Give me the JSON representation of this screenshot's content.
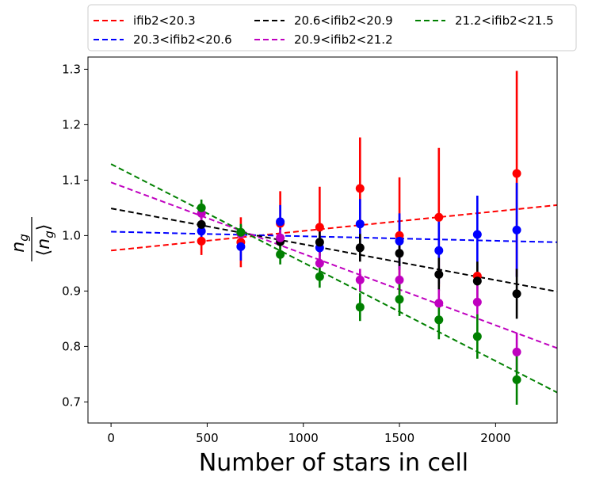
{
  "chart_data": {
    "type": "scatter",
    "xlabel": "Number of stars in cell",
    "ylabel": {
      "symbol": "n",
      "subscript": "g"
    },
    "xlim": [
      -120,
      2320
    ],
    "ylim": [
      0.662,
      1.322
    ],
    "xticks": [
      0,
      500,
      1000,
      1500,
      2000
    ],
    "yticks": [
      0.7,
      0.8,
      0.9,
      1.0,
      1.1,
      1.2,
      1.3
    ],
    "legend_position": "top, outside plot area",
    "series": [
      {
        "name": "ifib2<20.3",
        "color": "#ff0000",
        "fit": {
          "x": [
            0,
            2320
          ],
          "y": [
            0.973,
            1.055
          ]
        },
        "points": [
          {
            "x": 470,
            "y": 0.99,
            "err": 0.025
          },
          {
            "x": 675,
            "y": 0.988,
            "err": 0.045
          },
          {
            "x": 880,
            "y": 1.022,
            "err": 0.058
          },
          {
            "x": 1085,
            "y": 1.015,
            "err": 0.073
          },
          {
            "x": 1295,
            "y": 1.085,
            "err": 0.092
          },
          {
            "x": 1500,
            "y": 1.0,
            "err": 0.105
          },
          {
            "x": 1705,
            "y": 1.033,
            "err": 0.125
          },
          {
            "x": 1905,
            "y": 0.927,
            "err": 0.0
          },
          {
            "x": 2110,
            "y": 1.112,
            "err": 0.185
          }
        ]
      },
      {
        "name": "20.3<ifib2<20.6",
        "color": "#0000ff",
        "fit": {
          "x": [
            0,
            2320
          ],
          "y": [
            1.007,
            0.988
          ]
        },
        "points": [
          {
            "x": 470,
            "y": 1.008,
            "err": 0.015
          },
          {
            "x": 675,
            "y": 0.98,
            "err": 0.025
          },
          {
            "x": 880,
            "y": 1.025,
            "err": 0.03
          },
          {
            "x": 1085,
            "y": 0.978,
            "err": 0.035
          },
          {
            "x": 1295,
            "y": 1.021,
            "err": 0.045
          },
          {
            "x": 1500,
            "y": 0.99,
            "err": 0.05
          },
          {
            "x": 1705,
            "y": 0.973,
            "err": 0.06
          },
          {
            "x": 1905,
            "y": 1.002,
            "err": 0.07
          },
          {
            "x": 2110,
            "y": 1.01,
            "err": 0.085
          }
        ]
      },
      {
        "name": "20.6<ifib2<20.9",
        "color": "#000000",
        "fit": {
          "x": [
            0,
            2320
          ],
          "y": [
            1.049,
            0.899
          ]
        },
        "points": [
          {
            "x": 470,
            "y": 1.02,
            "err": 0.015
          },
          {
            "x": 675,
            "y": 1.004,
            "err": 0.015
          },
          {
            "x": 880,
            "y": 0.989,
            "err": 0.02
          },
          {
            "x": 1085,
            "y": 0.988,
            "err": 0.025
          },
          {
            "x": 1295,
            "y": 0.978,
            "err": 0.025
          },
          {
            "x": 1500,
            "y": 0.968,
            "err": 0.03
          },
          {
            "x": 1705,
            "y": 0.93,
            "err": 0.03
          },
          {
            "x": 1905,
            "y": 0.918,
            "err": 0.035
          },
          {
            "x": 2110,
            "y": 0.895,
            "err": 0.045
          }
        ]
      },
      {
        "name": "20.9<ifib2<21.2",
        "color": "#bf00bf",
        "fit": {
          "x": [
            0,
            2320
          ],
          "y": [
            1.096,
            0.797
          ]
        },
        "points": [
          {
            "x": 470,
            "y": 1.04,
            "err": 0.015
          },
          {
            "x": 675,
            "y": 1.003,
            "err": 0.015
          },
          {
            "x": 880,
            "y": 0.996,
            "err": 0.015
          },
          {
            "x": 1085,
            "y": 0.95,
            "err": 0.02
          },
          {
            "x": 1295,
            "y": 0.92,
            "err": 0.02
          },
          {
            "x": 1500,
            "y": 0.92,
            "err": 0.025
          },
          {
            "x": 1705,
            "y": 0.878,
            "err": 0.025
          },
          {
            "x": 1905,
            "y": 0.88,
            "err": 0.03
          },
          {
            "x": 2110,
            "y": 0.79,
            "err": 0.035
          }
        ]
      },
      {
        "name": "21.2<ifib2<21.5",
        "color": "#008000",
        "fit": {
          "x": [
            0,
            2320
          ],
          "y": [
            1.129,
            0.717
          ]
        },
        "points": [
          {
            "x": 470,
            "y": 1.05,
            "err": 0.015
          },
          {
            "x": 675,
            "y": 1.006,
            "err": 0.015
          },
          {
            "x": 880,
            "y": 0.966,
            "err": 0.018
          },
          {
            "x": 1085,
            "y": 0.926,
            "err": 0.02
          },
          {
            "x": 1295,
            "y": 0.871,
            "err": 0.025
          },
          {
            "x": 1500,
            "y": 0.885,
            "err": 0.03
          },
          {
            "x": 1705,
            "y": 0.848,
            "err": 0.035
          },
          {
            "x": 1905,
            "y": 0.818,
            "err": 0.04
          },
          {
            "x": 2110,
            "y": 0.74,
            "err": 0.045
          }
        ]
      }
    ]
  }
}
